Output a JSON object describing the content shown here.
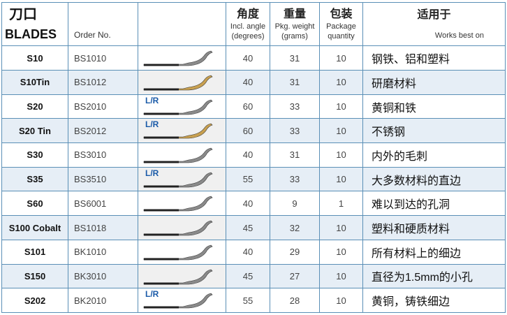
{
  "header": {
    "blades_cn": "刀口",
    "blades_en": "BLADES",
    "order_no": "Order No.",
    "angle_cn": "角度",
    "angle_en_1": "Incl. angle",
    "angle_en_2": "(degrees)",
    "weight_cn": "重量",
    "weight_en_1": "Pkg. weight",
    "weight_en_2": "(grams)",
    "package_cn": "包装",
    "package_en_1": "Package",
    "package_en_2": "quantity",
    "usage_cn": "适用于",
    "usage_en": "Works best on"
  },
  "rows": [
    {
      "model": "S10",
      "order": "BS1010",
      "lr": "",
      "angle": "40",
      "weight": "31",
      "qty": "10",
      "usage": "钢铁、铝和塑料",
      "blade_color": "#8a8a8a"
    },
    {
      "model": "S10Tin",
      "order": "BS1012",
      "lr": "",
      "angle": "40",
      "weight": "31",
      "qty": "10",
      "usage": "研磨材料",
      "blade_color": "#c8a050"
    },
    {
      "model": "S20",
      "order": "BS2010",
      "lr": "L/R",
      "angle": "60",
      "weight": "33",
      "qty": "10",
      "usage": "黄铜和铁",
      "blade_color": "#8a8a8a"
    },
    {
      "model": "S20 Tin",
      "order": "BS2012",
      "lr": "L/R",
      "angle": "60",
      "weight": "33",
      "qty": "10",
      "usage": "不锈钢",
      "blade_color": "#c8a050"
    },
    {
      "model": "S30",
      "order": "BS3010",
      "lr": "",
      "angle": "40",
      "weight": "31",
      "qty": "10",
      "usage": "内外的毛刺",
      "blade_color": "#8a8a8a"
    },
    {
      "model": "S35",
      "order": "BS3510",
      "lr": "L/R",
      "angle": "55",
      "weight": "33",
      "qty": "10",
      "usage": "大多数材料的直边",
      "blade_color": "#8a8a8a"
    },
    {
      "model": "S60",
      "order": "BS6001",
      "lr": "",
      "angle": "40",
      "weight": "9",
      "qty": "1",
      "usage": "难以到达的孔洞",
      "blade_color": "#8a8a8a"
    },
    {
      "model": "S100 Cobalt",
      "order": "BS1018",
      "lr": "",
      "angle": "45",
      "weight": "32",
      "qty": "10",
      "usage": "塑料和硬质材料",
      "blade_color": "#8a8a8a"
    },
    {
      "model": "S101",
      "order": "BK1010",
      "lr": "",
      "angle": "40",
      "weight": "29",
      "qty": "10",
      "usage": "所有材料上的细边",
      "blade_color": "#8a8a8a"
    },
    {
      "model": "S150",
      "order": "BK3010",
      "lr": "",
      "angle": "45",
      "weight": "27",
      "qty": "10",
      "usage": "直径为1.5mm的小孔",
      "blade_color": "#8a8a8a"
    },
    {
      "model": "S202",
      "order": "BK2010",
      "lr": "L/R",
      "angle": "55",
      "weight": "28",
      "qty": "10",
      "usage": "黄铜，铸铁细边",
      "blade_color": "#8a8a8a"
    }
  ],
  "colors": {
    "border": "#5a8fb6",
    "alt_row": "#e6eef6",
    "lr_text": "#1a5aa8"
  }
}
